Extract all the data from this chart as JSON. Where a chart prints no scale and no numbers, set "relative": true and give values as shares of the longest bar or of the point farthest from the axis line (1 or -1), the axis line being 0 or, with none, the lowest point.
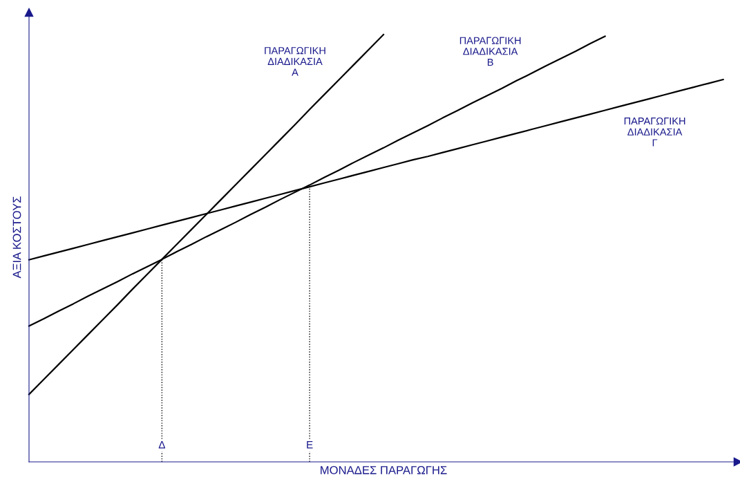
{
  "chart_data": {
    "type": "line",
    "relative": true,
    "xlabel": "ΜΟΝΑΔΕΣ ΠΑΡΑΓΩΓΗΣ",
    "ylabel": "ΑΞΙΑ ΚΟΣΤΟΥΣ",
    "tick_labels": "x",
    "legend": false,
    "marker": "none",
    "categories": [
      null,
      null,
      null,
      null,
      null,
      null,
      null,
      null,
      null,
      "Δ",
      null,
      null,
      null,
      null,
      null,
      null,
      null,
      null,
      null,
      "Ε",
      null,
      null,
      null,
      null,
      null,
      null,
      null,
      null,
      null,
      null,
      null,
      null,
      null,
      null,
      null,
      null,
      null,
      null,
      null,
      null,
      null,
      null,
      null,
      null,
      null,
      null,
      null,
      null,
      null
    ],
    "series": [
      {
        "name": "ΠΑΡΑΓΩΓΙΚΗ\nΔΙΑΔΙΚΑΣΙΑ\nΑ",
        "color": "#000000",
        "values": [
          0.158,
          0.193,
          0.228,
          0.263,
          0.298,
          0.333,
          0.368,
          0.404,
          0.439,
          0.474,
          0.509,
          0.544,
          0.579,
          0.614,
          0.649,
          0.684,
          0.719,
          0.754,
          0.789,
          0.825,
          0.86,
          0.895,
          0.93,
          0.965,
          1.0,
          null,
          null,
          null,
          null,
          null,
          null,
          null,
          null,
          null,
          null,
          null,
          null,
          null,
          null,
          null,
          null,
          null,
          null,
          null,
          null,
          null,
          null,
          null,
          null
        ]
      },
      {
        "name": "ΠΑΡΑΓΩΓΙΚΗ\nΔΙΑΔΙΚΑΣΙΑ\nΒ",
        "color": "#000000",
        "values": [
          0.318,
          0.335,
          0.353,
          0.37,
          0.388,
          0.405,
          0.422,
          0.44,
          0.457,
          0.474,
          0.492,
          0.509,
          0.527,
          0.544,
          0.561,
          0.579,
          0.596,
          0.614,
          0.631,
          0.648,
          0.666,
          0.683,
          0.701,
          0.718,
          0.735,
          0.753,
          0.77,
          0.787,
          0.805,
          0.822,
          0.84,
          0.857,
          0.874,
          0.892,
          0.909,
          0.927,
          0.944,
          0.961,
          0.979,
          0.996,
          null,
          null,
          null,
          null,
          null,
          null,
          null,
          null,
          null
        ]
      },
      {
        "name": "ΠΑΡΑΓΩΓΙΚΗ\nΔΙΑΔΙΚΑΣΙΑ\nΓ",
        "color": "#000000",
        "values": [
          0.473,
          0.482,
          0.491,
          0.5,
          0.509,
          0.518,
          0.527,
          0.536,
          0.545,
          0.554,
          0.563,
          0.572,
          0.581,
          0.59,
          0.599,
          0.608,
          0.617,
          0.626,
          0.635,
          0.644,
          0.653,
          0.662,
          0.671,
          0.68,
          0.689,
          0.698,
          0.707,
          0.715,
          0.724,
          0.733,
          0.742,
          0.751,
          0.76,
          0.769,
          0.778,
          0.787,
          0.796,
          0.805,
          0.814,
          0.823,
          0.832,
          0.841,
          0.85,
          0.859,
          0.868,
          0.877,
          0.886,
          0.895,
          null
        ]
      }
    ],
    "ref_lines": [
      {
        "axis": "x",
        "value": "Δ",
        "color": "#000000",
        "line_style": "dotted"
      },
      {
        "axis": "x",
        "value": "Ε",
        "color": "#000000",
        "line_style": "dotted"
      }
    ]
  }
}
